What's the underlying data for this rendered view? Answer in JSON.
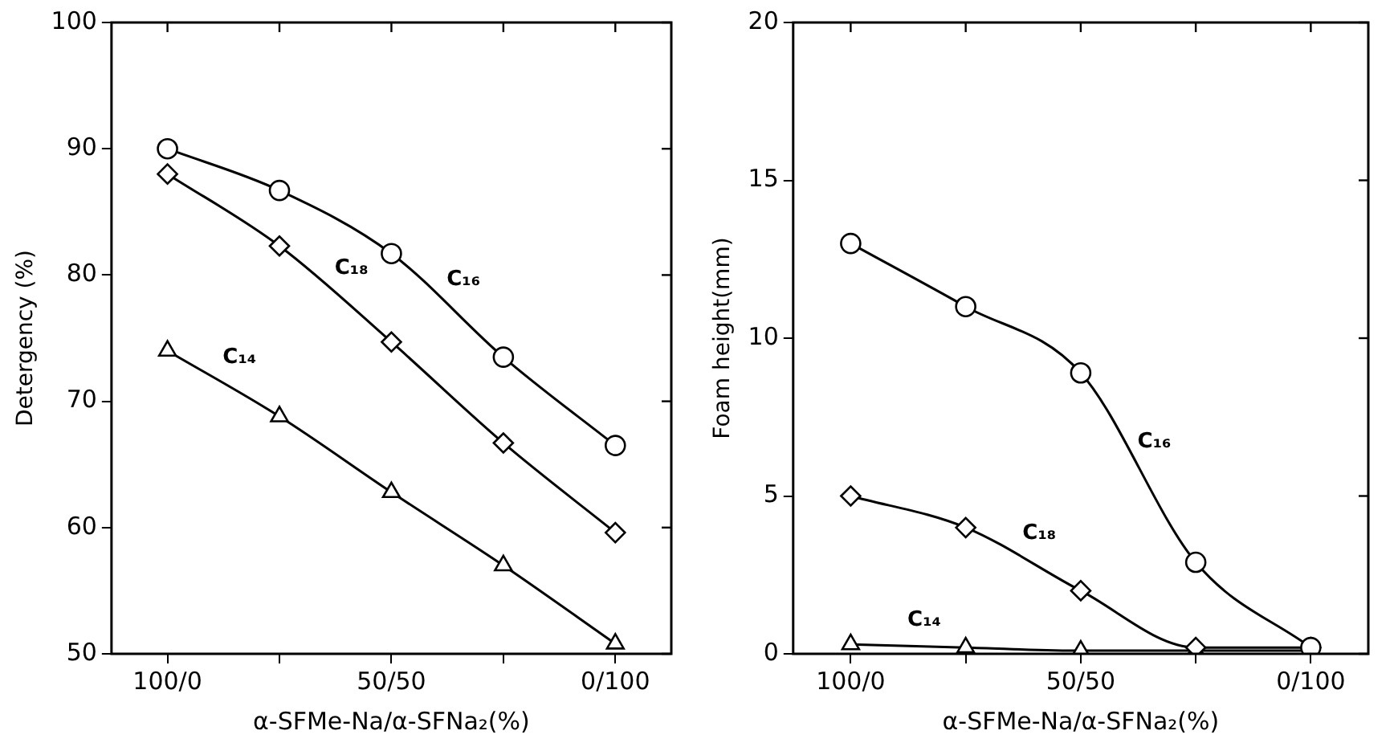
{
  "chart_data": [
    {
      "type": "line",
      "xlabel": "α-SFMe-Na/α-SFNa₂(%)",
      "ylabel": "Detergency (%)",
      "categories": [
        "100/0",
        null,
        "50/50",
        null,
        "0/100"
      ],
      "ylim": [
        50,
        100
      ],
      "yticks": [
        50,
        60,
        70,
        80,
        90,
        100
      ],
      "grid": false,
      "legend": false,
      "line_style": "solid",
      "series": [
        {
          "name": "C₁₆",
          "color": "#000000",
          "marker": "circle",
          "values": [
            90,
            86.7,
            81.7,
            73.5,
            66.5
          ]
        },
        {
          "name": "C₁₈",
          "color": "#000000",
          "marker": "diamond",
          "values": [
            88,
            82.3,
            74.7,
            66.7,
            59.6
          ]
        },
        {
          "name": "C₁₄",
          "color": "#000000",
          "marker": "triangle",
          "values": [
            74,
            68.8,
            62.8,
            57,
            50.8
          ]
        }
      ]
    },
    {
      "type": "line",
      "xlabel": "α-SFMe-Na/α-SFNa₂(%)",
      "ylabel": "Foam height(mm)",
      "categories": [
        "100/0",
        null,
        "50/50",
        null,
        "0/100"
      ],
      "ylim": [
        0,
        20
      ],
      "yticks": [
        0,
        5,
        10,
        15,
        20
      ],
      "grid": false,
      "legend": false,
      "line_style": "solid",
      "series": [
        {
          "name": "C₁₆",
          "color": "#000000",
          "marker": "circle",
          "values": [
            13,
            11,
            8.9,
            2.9,
            0.2
          ]
        },
        {
          "name": "C₁₈",
          "color": "#000000",
          "marker": "diamond",
          "values": [
            5,
            4,
            2,
            0.2,
            0.2
          ]
        },
        {
          "name": "C₁₄",
          "color": "#000000",
          "marker": "triangle",
          "values": [
            0.3,
            0.2,
            0.1,
            0.1,
            0.1
          ]
        }
      ]
    }
  ]
}
